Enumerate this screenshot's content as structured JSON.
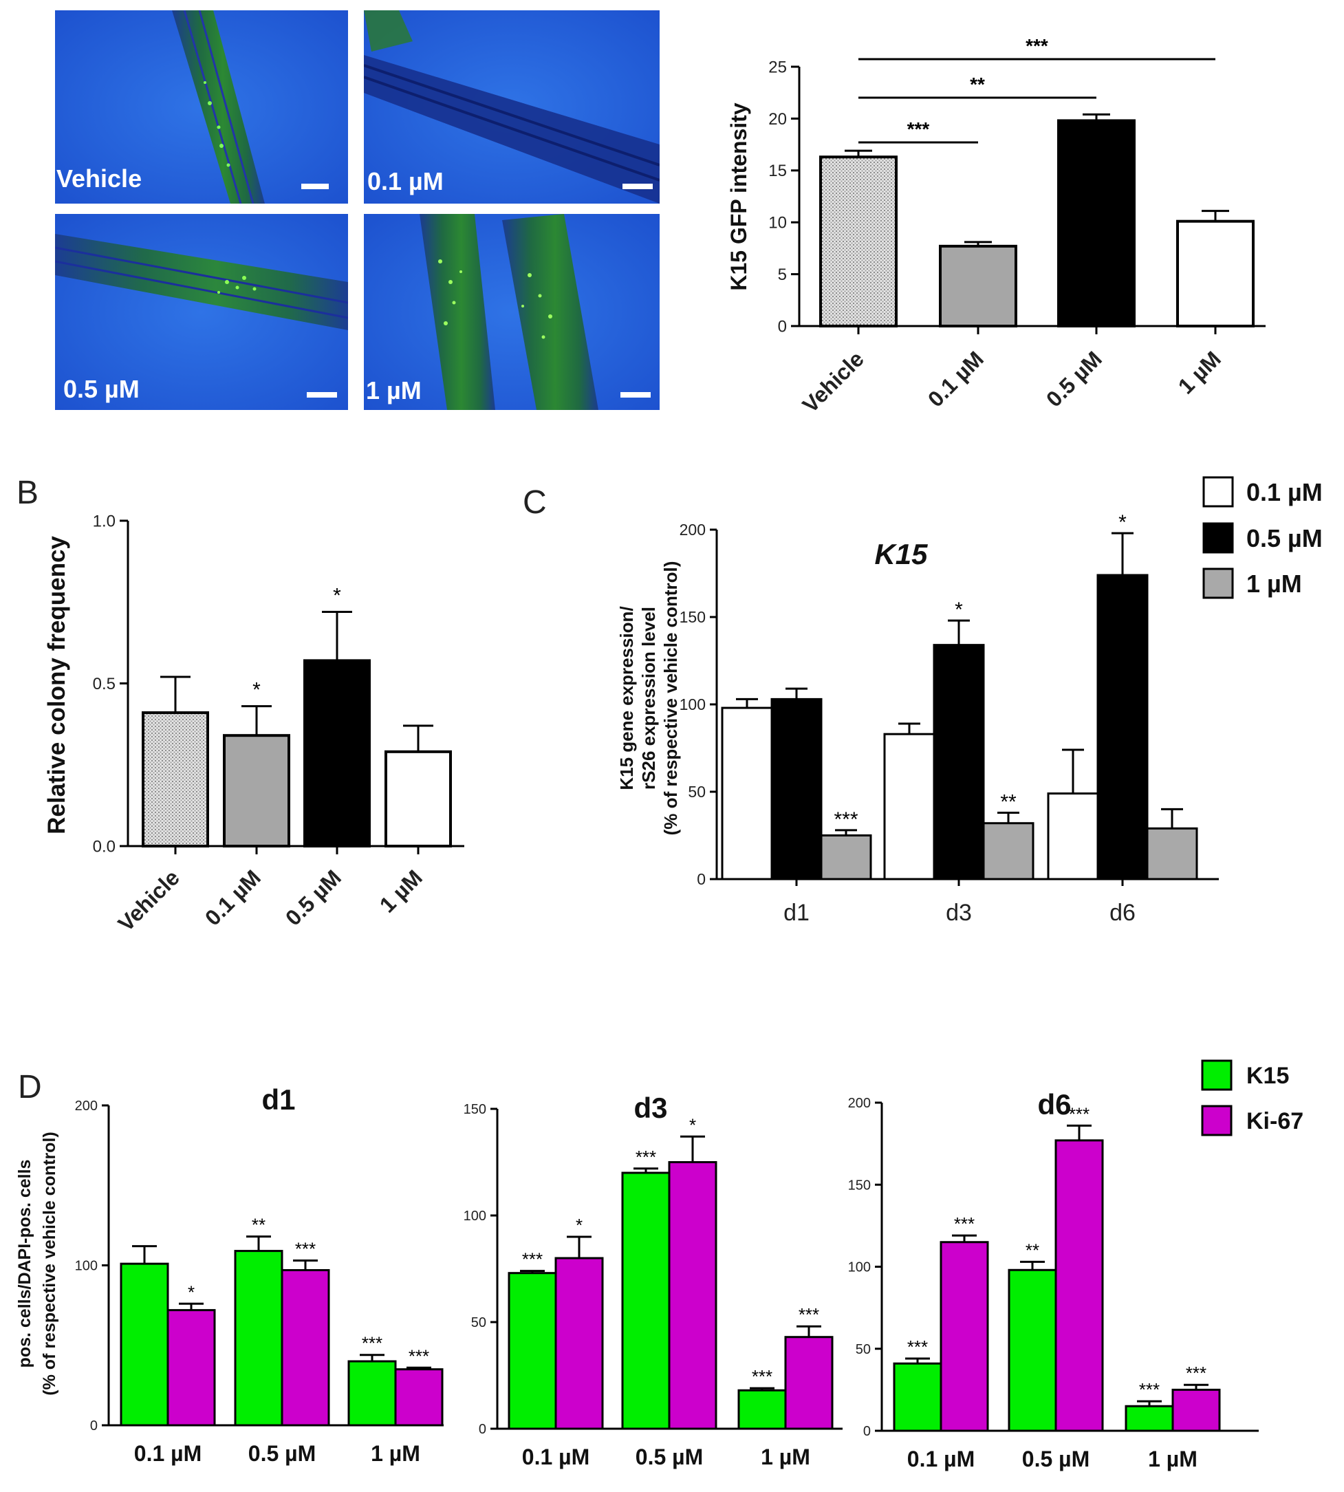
{
  "panel_letters": {
    "b": "B",
    "c": "C",
    "d": "D"
  },
  "micrograph_labels": [
    "Vehicle",
    "0.1 µM",
    "0.5 µM",
    "1 µM"
  ],
  "chart_data": [
    {
      "id": "A",
      "type": "bar",
      "categories": [
        "Vehicle",
        "0.1 µM",
        "0.5 µM",
        "1 µM"
      ],
      "values": [
        16.3,
        7.7,
        19.8,
        10.1
      ],
      "errors": [
        0.6,
        0.4,
        0.6,
        1.0
      ],
      "ylabel": "K15 GFP intensity",
      "ylim": [
        0,
        25
      ],
      "yticks": [
        0,
        5,
        10,
        15,
        20,
        25
      ],
      "significance": [
        {
          "from": 0,
          "to": 1,
          "label": "***"
        },
        {
          "from": 0,
          "to": 2,
          "label": "**"
        },
        {
          "from": 0,
          "to": 3,
          "label": "***"
        }
      ],
      "colors": [
        "#d8d8d8",
        "#a6a6a6",
        "#000000",
        "#ffffff"
      ]
    },
    {
      "id": "B",
      "type": "bar",
      "categories": [
        "Vehicle",
        "0.1 µM",
        "0.5 µM",
        "1 µM"
      ],
      "values": [
        0.41,
        0.34,
        0.57,
        0.29
      ],
      "errors": [
        0.11,
        0.09,
        0.15,
        0.08
      ],
      "ylabel": "Relative colony frequency",
      "ylim": [
        0,
        1.0
      ],
      "yticks": [
        0.0,
        0.5,
        1.0
      ],
      "ytick_labels": [
        "0.0",
        "0.5",
        "1.0"
      ],
      "annotations": [
        "",
        "*",
        "*",
        ""
      ],
      "colors": [
        "#d8d8d8",
        "#a6a6a6",
        "#000000",
        "#ffffff"
      ]
    },
    {
      "id": "C",
      "type": "bar",
      "title": "K15",
      "categories": [
        "d1",
        "d3",
        "d6"
      ],
      "series": [
        {
          "name": "0.1 µM",
          "color": "#ffffff",
          "values": [
            98,
            83,
            49
          ],
          "errors": [
            5,
            6,
            25
          ],
          "annotations": [
            "",
            "",
            ""
          ]
        },
        {
          "name": "0.5 µM",
          "color": "#000000",
          "values": [
            103,
            134,
            174
          ],
          "errors": [
            6,
            14,
            24
          ],
          "annotations": [
            "",
            "*",
            "*"
          ]
        },
        {
          "name": "1 µM",
          "color": "#a9a9a9",
          "values": [
            25,
            32,
            29
          ],
          "errors": [
            3,
            6,
            11
          ],
          "annotations": [
            "***",
            "**",
            ""
          ]
        }
      ],
      "ylabel_lines": [
        "K15 gene expression/",
        "rS26 expression level",
        "(% of respective vehicle control)"
      ],
      "ylim": [
        0,
        200
      ],
      "yticks": [
        0,
        50,
        100,
        150,
        200
      ],
      "legend": "top-right"
    },
    {
      "id": "D1",
      "type": "bar",
      "title": "d1",
      "categories": [
        "0.1 µM",
        "0.5 µM",
        "1 µM"
      ],
      "series": [
        {
          "name": "K15",
          "color": "#00ee00",
          "values": [
            101,
            109,
            40
          ],
          "errors": [
            11,
            9,
            4
          ],
          "annotations": [
            "",
            "**",
            "***"
          ]
        },
        {
          "name": "Ki-67",
          "color": "#cc00cc",
          "values": [
            72,
            97,
            35
          ],
          "errors": [
            4,
            6,
            1
          ],
          "annotations": [
            "*",
            "***",
            "***"
          ]
        }
      ],
      "ylabel_lines": [
        "pos. cells/DAPI-pos. cells",
        "(% of respective vehicle control)"
      ],
      "ylim": [
        0,
        200
      ],
      "yticks": [
        0,
        100,
        200
      ]
    },
    {
      "id": "D3",
      "type": "bar",
      "title": "d3",
      "categories": [
        "0.1 µM",
        "0.5 µM",
        "1 µM"
      ],
      "series": [
        {
          "name": "K15",
          "color": "#00ee00",
          "values": [
            73,
            120,
            18
          ],
          "errors": [
            1,
            2,
            1
          ],
          "annotations": [
            "***",
            "***",
            "***"
          ]
        },
        {
          "name": "Ki-67",
          "color": "#cc00cc",
          "values": [
            80,
            125,
            43
          ],
          "errors": [
            10,
            12,
            5
          ],
          "annotations": [
            "*",
            "*",
            "***"
          ]
        }
      ],
      "ylim": [
        0,
        150
      ],
      "yticks": [
        0,
        50,
        100,
        150
      ]
    },
    {
      "id": "D6",
      "type": "bar",
      "title": "d6",
      "categories": [
        "0.1 µM",
        "0.5 µM",
        "1 µM"
      ],
      "series": [
        {
          "name": "K15",
          "color": "#00ee00",
          "values": [
            41,
            98,
            15
          ],
          "errors": [
            3,
            5,
            3
          ],
          "annotations": [
            "***",
            "**",
            "***"
          ]
        },
        {
          "name": "Ki-67",
          "color": "#cc00cc",
          "values": [
            115,
            177,
            25
          ],
          "errors": [
            4,
            9,
            3
          ],
          "annotations": [
            "***",
            "***",
            "***"
          ]
        }
      ],
      "ylim": [
        0,
        200
      ],
      "yticks": [
        0,
        50,
        100,
        150,
        200
      ],
      "legend": "top-right"
    }
  ]
}
